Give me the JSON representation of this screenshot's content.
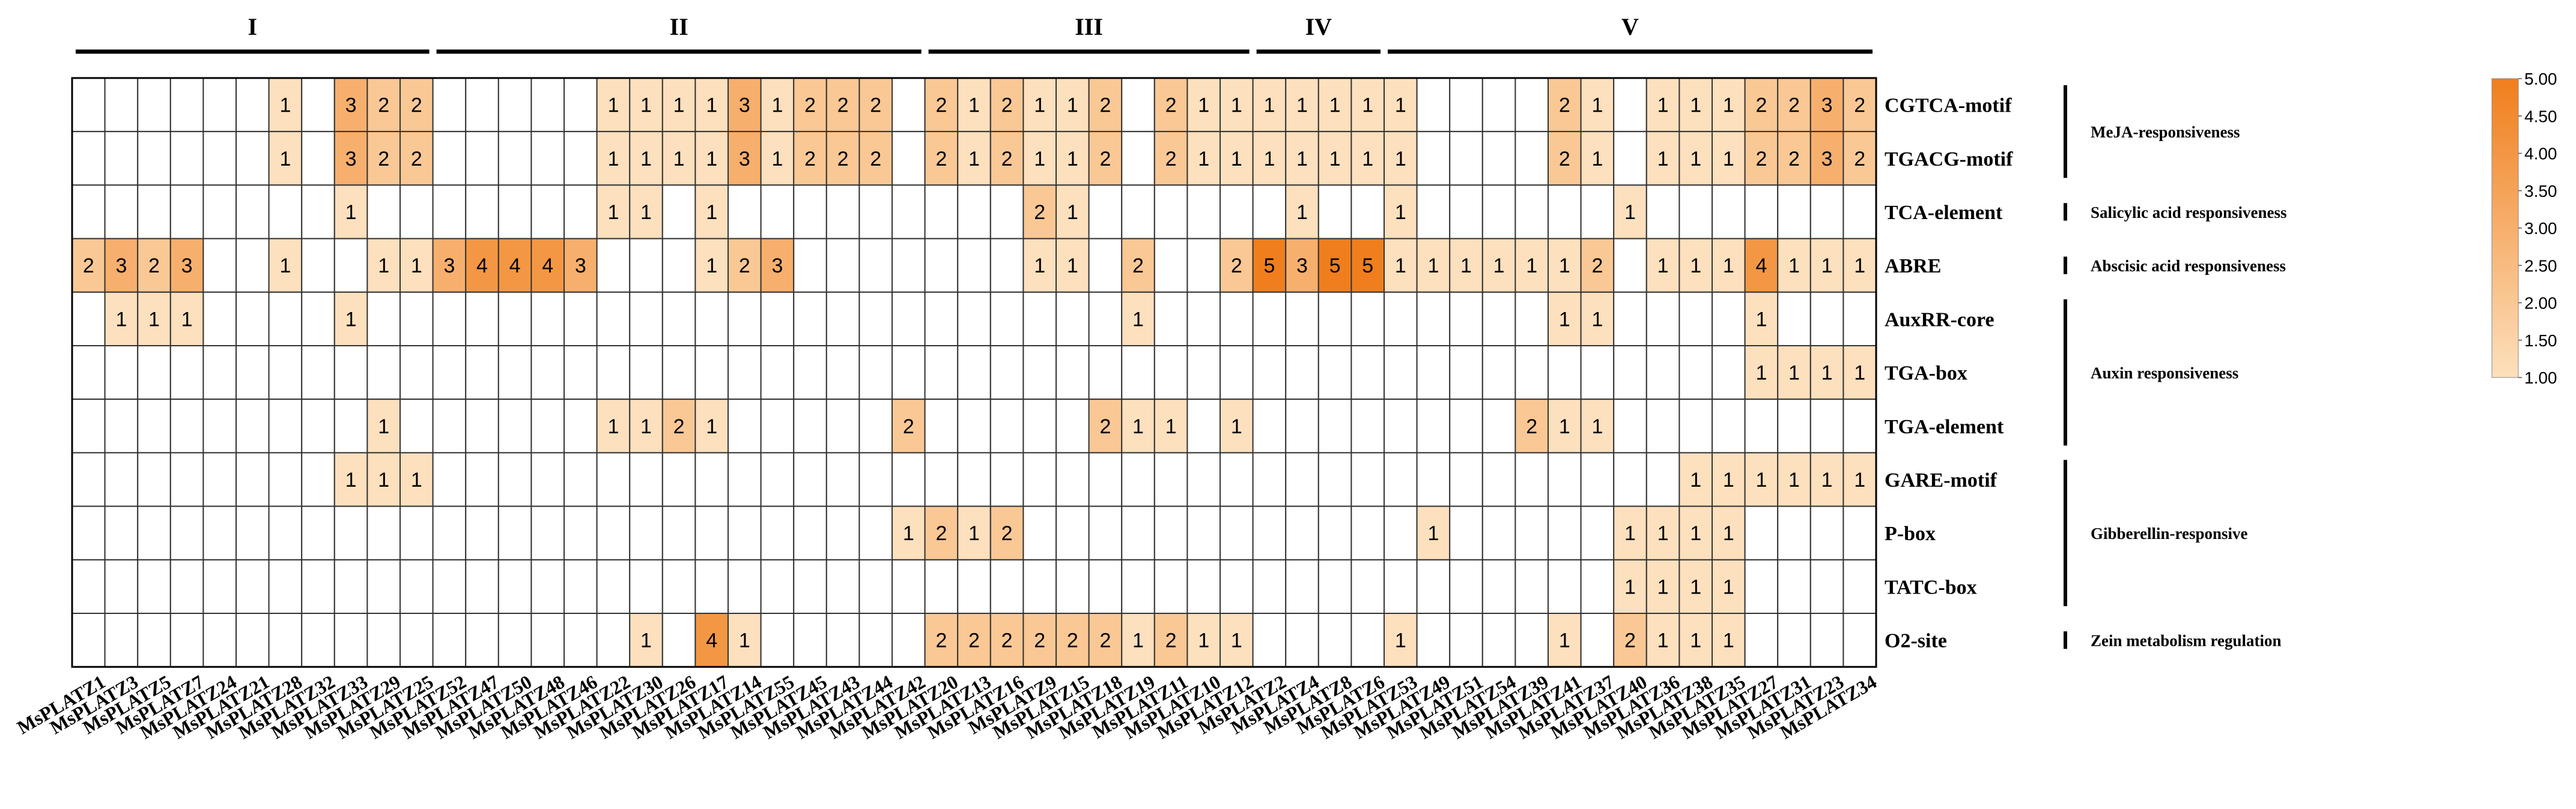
{
  "chart_data": {
    "type": "heatmap",
    "columns": [
      "MsPLATZ1",
      "MsPLATZ3",
      "MsPLATZ5",
      "MsPLATZ7",
      "MsPLATZ24",
      "MsPLATZ21",
      "MsPLATZ28",
      "MsPLATZ32",
      "MsPLATZ33",
      "MsPLATZ29",
      "MsPLATZ25",
      "MsPLATZ52",
      "MsPLATZ47",
      "MsPLATZ50",
      "MsPLATZ48",
      "MsPLATZ46",
      "MsPLATZ22",
      "MsPLATZ30",
      "MsPLATZ26",
      "MsPLATZ17",
      "MsPLATZ14",
      "MsPLATZ55",
      "MsPLATZ45",
      "MsPLATZ43",
      "MsPLATZ44",
      "MsPLATZ42",
      "MsPLATZ20",
      "MsPLATZ13",
      "MsPLATZ16",
      "MsPLATZ9",
      "MsPLATZ15",
      "MsPLATZ18",
      "MsPLATZ19",
      "MsPLATZ11",
      "MsPLATZ10",
      "MsPLATZ12",
      "MsPLATZ2",
      "MsPLATZ4",
      "MsPLATZ8",
      "MsPLATZ6",
      "MsPLATZ53",
      "MsPLATZ49",
      "MsPLATZ51",
      "MsPLATZ54",
      "MsPLATZ39",
      "MsPLATZ41",
      "MsPLATZ37",
      "MsPLATZ40",
      "MsPLATZ36",
      "MsPLATZ38",
      "MsPLATZ35",
      "MsPLATZ27",
      "MsPLATZ31",
      "MsPLATZ23",
      "MsPLATZ34"
    ],
    "rows": [
      "CGTCA-motif",
      "TGACG-motif",
      "TCA-element",
      "ABRE",
      "AuxRR-core",
      "TGA-box",
      "TGA-element",
      "GARE-motif",
      "P-box",
      "TATC-box",
      "O2-site"
    ],
    "values": [
      [
        0,
        0,
        0,
        0,
        0,
        0,
        1,
        0,
        3,
        2,
        2,
        0,
        0,
        0,
        0,
        0,
        1,
        1,
        1,
        1,
        3,
        1,
        2,
        2,
        2,
        0,
        2,
        1,
        2,
        1,
        1,
        2,
        0,
        2,
        1,
        1,
        1,
        1,
        1,
        1,
        1,
        0,
        0,
        0,
        0,
        2,
        1,
        0,
        1,
        1,
        1,
        2,
        2,
        3,
        2
      ],
      [
        0,
        0,
        0,
        0,
        0,
        0,
        1,
        0,
        3,
        2,
        2,
        0,
        0,
        0,
        0,
        0,
        1,
        1,
        1,
        1,
        3,
        1,
        2,
        2,
        2,
        0,
        2,
        1,
        2,
        1,
        1,
        2,
        0,
        2,
        1,
        1,
        1,
        1,
        1,
        1,
        1,
        0,
        0,
        0,
        0,
        2,
        1,
        0,
        1,
        1,
        1,
        2,
        2,
        3,
        2
      ],
      [
        0,
        0,
        0,
        0,
        0,
        0,
        0,
        0,
        1,
        0,
        0,
        0,
        0,
        0,
        0,
        0,
        1,
        1,
        0,
        1,
        0,
        0,
        0,
        0,
        0,
        0,
        0,
        0,
        0,
        2,
        1,
        0,
        0,
        0,
        0,
        0,
        0,
        1,
        0,
        0,
        1,
        0,
        0,
        0,
        0,
        0,
        0,
        1,
        0,
        0,
        0,
        0,
        0,
        0,
        0
      ],
      [
        2,
        3,
        2,
        3,
        0,
        0,
        1,
        0,
        0,
        1,
        1,
        3,
        4,
        4,
        4,
        3,
        0,
        0,
        0,
        1,
        2,
        3,
        0,
        0,
        0,
        0,
        0,
        0,
        0,
        1,
        1,
        0,
        2,
        0,
        0,
        2,
        5,
        3,
        5,
        5,
        1,
        1,
        1,
        1,
        1,
        1,
        2,
        0,
        1,
        1,
        1,
        4,
        1,
        1,
        1
      ],
      [
        0,
        1,
        1,
        1,
        0,
        0,
        0,
        0,
        1,
        0,
        0,
        0,
        0,
        0,
        0,
        0,
        0,
        0,
        0,
        0,
        0,
        0,
        0,
        0,
        0,
        0,
        0,
        0,
        0,
        0,
        0,
        0,
        1,
        0,
        0,
        0,
        0,
        0,
        0,
        0,
        0,
        0,
        0,
        0,
        0,
        1,
        1,
        0,
        0,
        0,
        0,
        1,
        0,
        0,
        0
      ],
      [
        0,
        0,
        0,
        0,
        0,
        0,
        0,
        0,
        0,
        0,
        0,
        0,
        0,
        0,
        0,
        0,
        0,
        0,
        0,
        0,
        0,
        0,
        0,
        0,
        0,
        0,
        0,
        0,
        0,
        0,
        0,
        0,
        0,
        0,
        0,
        0,
        0,
        0,
        0,
        0,
        0,
        0,
        0,
        0,
        0,
        0,
        0,
        0,
        0,
        0,
        0,
        1,
        1,
        1,
        1
      ],
      [
        0,
        0,
        0,
        0,
        0,
        0,
        0,
        0,
        0,
        1,
        0,
        0,
        0,
        0,
        0,
        0,
        1,
        1,
        2,
        1,
        0,
        0,
        0,
        0,
        0,
        2,
        0,
        0,
        0,
        0,
        0,
        2,
        1,
        1,
        0,
        1,
        0,
        0,
        0,
        0,
        0,
        0,
        0,
        0,
        2,
        1,
        1,
        0,
        0,
        0,
        0,
        0,
        0,
        0,
        0
      ],
      [
        0,
        0,
        0,
        0,
        0,
        0,
        0,
        0,
        1,
        1,
        1,
        0,
        0,
        0,
        0,
        0,
        0,
        0,
        0,
        0,
        0,
        0,
        0,
        0,
        0,
        0,
        0,
        0,
        0,
        0,
        0,
        0,
        0,
        0,
        0,
        0,
        0,
        0,
        0,
        0,
        0,
        0,
        0,
        0,
        0,
        0,
        0,
        0,
        0,
        1,
        1,
        1,
        1,
        1,
        1
      ],
      [
        0,
        0,
        0,
        0,
        0,
        0,
        0,
        0,
        0,
        0,
        0,
        0,
        0,
        0,
        0,
        0,
        0,
        0,
        0,
        0,
        0,
        0,
        0,
        0,
        0,
        1,
        2,
        1,
        2,
        0,
        0,
        0,
        0,
        0,
        0,
        0,
        0,
        0,
        0,
        0,
        0,
        1,
        0,
        0,
        0,
        0,
        0,
        1,
        1,
        1,
        1,
        0,
        0,
        0,
        0
      ],
      [
        0,
        0,
        0,
        0,
        0,
        0,
        0,
        0,
        0,
        0,
        0,
        0,
        0,
        0,
        0,
        0,
        0,
        0,
        0,
        0,
        0,
        0,
        0,
        0,
        0,
        0,
        0,
        0,
        0,
        0,
        0,
        0,
        0,
        0,
        0,
        0,
        0,
        0,
        0,
        0,
        0,
        0,
        0,
        0,
        0,
        0,
        0,
        1,
        1,
        1,
        1,
        0,
        0,
        0,
        0
      ],
      [
        0,
        0,
        0,
        0,
        0,
        0,
        0,
        0,
        0,
        0,
        0,
        0,
        0,
        0,
        0,
        0,
        0,
        1,
        0,
        4,
        1,
        0,
        0,
        0,
        0,
        0,
        2,
        2,
        2,
        2,
        2,
        2,
        1,
        2,
        1,
        1,
        0,
        0,
        0,
        0,
        1,
        0,
        0,
        0,
        0,
        1,
        0,
        2,
        1,
        1,
        1,
        0,
        0,
        0,
        0
      ]
    ],
    "groups": [
      {
        "label": "I",
        "start": 0,
        "end": 10
      },
      {
        "label": "II",
        "start": 11,
        "end": 25
      },
      {
        "label": "III",
        "start": 26,
        "end": 35
      },
      {
        "label": "IV",
        "start": 36,
        "end": 39
      },
      {
        "label": "V",
        "start": 40,
        "end": 54
      }
    ],
    "categories": [
      {
        "label": "MeJA-responsiveness",
        "rows": [
          0,
          1
        ]
      },
      {
        "label": "Salicylic acid responsiveness",
        "rows": [
          2,
          2
        ]
      },
      {
        "label": "Abscisic acid responsiveness",
        "rows": [
          3,
          3
        ]
      },
      {
        "label": "Auxin responsiveness",
        "rows": [
          4,
          6
        ]
      },
      {
        "label": "Gibberellin-responsive",
        "rows": [
          7,
          9
        ]
      },
      {
        "label": "Zein metabolism regulation",
        "rows": [
          10,
          10
        ]
      }
    ],
    "color_scale": {
      "min": 1.0,
      "max": 5.0,
      "min_color": "#fde0bd",
      "max_color": "#f07e1c",
      "ticks": [
        "1.00",
        "1.50",
        "2.00",
        "2.50",
        "3.00",
        "3.50",
        "4.00",
        "4.50",
        "5.00"
      ]
    },
    "zero_color": "#ffffff",
    "grid_color": "#333333"
  }
}
